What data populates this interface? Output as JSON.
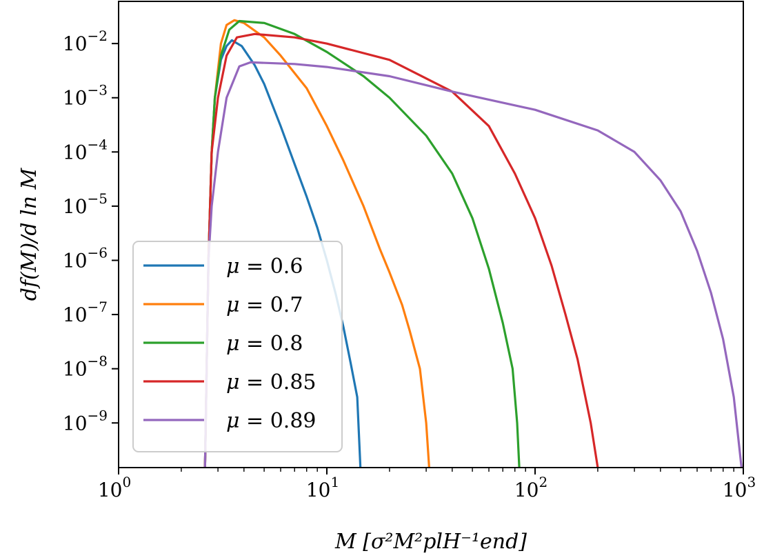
{
  "chart_data": {
    "type": "line",
    "title": "",
    "xlabel": "M [σ²M²plH⁻¹end]",
    "ylabel": "df(M)/d ln M",
    "x_scale": "log",
    "y_scale": "log",
    "xlim": [
      1,
      1000
    ],
    "ylim": [
      1.5e-10,
      0.06
    ],
    "x_ticks": [
      {
        "value": 1,
        "base": "10",
        "exp": "0"
      },
      {
        "value": 10,
        "base": "10",
        "exp": "1"
      },
      {
        "value": 100,
        "base": "10",
        "exp": "2"
      },
      {
        "value": 1000,
        "base": "10",
        "exp": "3"
      }
    ],
    "y_ticks": [
      {
        "value": 1e-09,
        "base": "10",
        "exp": "−9"
      },
      {
        "value": 1e-08,
        "base": "10",
        "exp": "−8"
      },
      {
        "value": 1e-07,
        "base": "10",
        "exp": "−7"
      },
      {
        "value": 1e-06,
        "base": "10",
        "exp": "−6"
      },
      {
        "value": 1e-05,
        "base": "10",
        "exp": "−5"
      },
      {
        "value": 0.0001,
        "base": "10",
        "exp": "−4"
      },
      {
        "value": 0.001,
        "base": "10",
        "exp": "−3"
      },
      {
        "value": 0.01,
        "base": "10",
        "exp": "−2"
      }
    ],
    "grid": false,
    "legend_position": "lower-left",
    "series": [
      {
        "name": "μ = 0.6",
        "label_prefix": "μ",
        "label_value": "= 0.6",
        "color": "#1f77b4",
        "points": [
          [
            2.6,
            1.5e-10
          ],
          [
            2.7,
            1e-06
          ],
          [
            2.8,
            0.0001
          ],
          [
            2.9,
            0.001
          ],
          [
            3.1,
            0.005
          ],
          [
            3.3,
            0.009
          ],
          [
            3.5,
            0.0115
          ],
          [
            3.9,
            0.009
          ],
          [
            4.5,
            0.004
          ],
          [
            5.0,
            0.0018
          ],
          [
            6.0,
            0.0003
          ],
          [
            7.0,
            6e-05
          ],
          [
            8.0,
            1.5e-05
          ],
          [
            9.0,
            4e-06
          ],
          [
            10.0,
            1e-06
          ],
          [
            11.0,
            2.5e-07
          ],
          [
            12.0,
            6e-08
          ],
          [
            13.0,
            1.3e-08
          ],
          [
            14.0,
            3e-09
          ],
          [
            14.5,
            1.5e-10
          ]
        ]
      },
      {
        "name": "μ = 0.7",
        "label_prefix": "μ",
        "label_value": "= 0.7",
        "color": "#ff7f0e",
        "points": [
          [
            2.6,
            1.5e-10
          ],
          [
            2.7,
            1e-06
          ],
          [
            2.8,
            0.0001
          ],
          [
            2.9,
            0.001
          ],
          [
            3.1,
            0.01
          ],
          [
            3.3,
            0.022
          ],
          [
            3.6,
            0.027
          ],
          [
            4.0,
            0.024
          ],
          [
            5.0,
            0.013
          ],
          [
            6.0,
            0.006
          ],
          [
            8.0,
            0.0015
          ],
          [
            10.0,
            0.0003
          ],
          [
            12.0,
            7e-05
          ],
          [
            15.0,
            1e-05
          ],
          [
            18.0,
            1.6e-06
          ],
          [
            20.0,
            6e-07
          ],
          [
            23.0,
            1.5e-07
          ],
          [
            25.0,
            5e-08
          ],
          [
            28.0,
            1e-08
          ],
          [
            30.0,
            1e-09
          ],
          [
            31.0,
            1.5e-10
          ]
        ]
      },
      {
        "name": "μ = 0.8",
        "label_prefix": "μ",
        "label_value": "= 0.8",
        "color": "#2ca02c",
        "points": [
          [
            2.6,
            1.5e-10
          ],
          [
            2.7,
            1e-06
          ],
          [
            2.8,
            0.0001
          ],
          [
            2.9,
            0.001
          ],
          [
            3.1,
            0.006
          ],
          [
            3.4,
            0.018
          ],
          [
            3.8,
            0.026
          ],
          [
            5.0,
            0.024
          ],
          [
            7.0,
            0.015
          ],
          [
            10.0,
            0.007
          ],
          [
            15.0,
            0.0025
          ],
          [
            20.0,
            0.001
          ],
          [
            30.0,
            0.0002
          ],
          [
            40.0,
            4e-05
          ],
          [
            50.0,
            6e-06
          ],
          [
            60.0,
            7e-07
          ],
          [
            70.0,
            7e-08
          ],
          [
            78.0,
            1e-08
          ],
          [
            82.0,
            1e-09
          ],
          [
            84.0,
            1.5e-10
          ]
        ]
      },
      {
        "name": "μ = 0.85",
        "label_prefix": "μ",
        "label_value": "= 0.85",
        "color": "#d62728",
        "points": [
          [
            2.6,
            1.5e-10
          ],
          [
            2.7,
            1e-06
          ],
          [
            2.8,
            0.0001
          ],
          [
            3.0,
            0.001
          ],
          [
            3.3,
            0.006
          ],
          [
            3.7,
            0.013
          ],
          [
            4.5,
            0.015
          ],
          [
            7.0,
            0.013
          ],
          [
            10.0,
            0.01
          ],
          [
            20.0,
            0.005
          ],
          [
            40.0,
            0.0013
          ],
          [
            60.0,
            0.0003
          ],
          [
            80.0,
            4e-05
          ],
          [
            100.0,
            6e-06
          ],
          [
            120.0,
            8e-07
          ],
          [
            140.0,
            1e-07
          ],
          [
            160.0,
            1.5e-08
          ],
          [
            185.0,
            1e-09
          ],
          [
            200.0,
            1.5e-10
          ]
        ]
      },
      {
        "name": "μ = 0.89",
        "label_prefix": "μ",
        "label_value": "= 0.89",
        "color": "#9467bd",
        "points": [
          [
            2.6,
            1.5e-10
          ],
          [
            2.7,
            1e-06
          ],
          [
            2.8,
            1e-05
          ],
          [
            3.0,
            0.0001
          ],
          [
            3.3,
            0.001
          ],
          [
            3.8,
            0.0038
          ],
          [
            4.3,
            0.0045
          ],
          [
            7.0,
            0.0042
          ],
          [
            10.0,
            0.0037
          ],
          [
            20.0,
            0.0025
          ],
          [
            40.0,
            0.0013
          ],
          [
            100.0,
            0.0006
          ],
          [
            200.0,
            0.00025
          ],
          [
            300.0,
            0.0001
          ],
          [
            400.0,
            3e-05
          ],
          [
            500.0,
            8e-06
          ],
          [
            600.0,
            1.5e-06
          ],
          [
            700.0,
            2.5e-07
          ],
          [
            800.0,
            3.5e-08
          ],
          [
            900.0,
            3e-09
          ],
          [
            980.0,
            1.5e-10
          ]
        ]
      }
    ]
  }
}
